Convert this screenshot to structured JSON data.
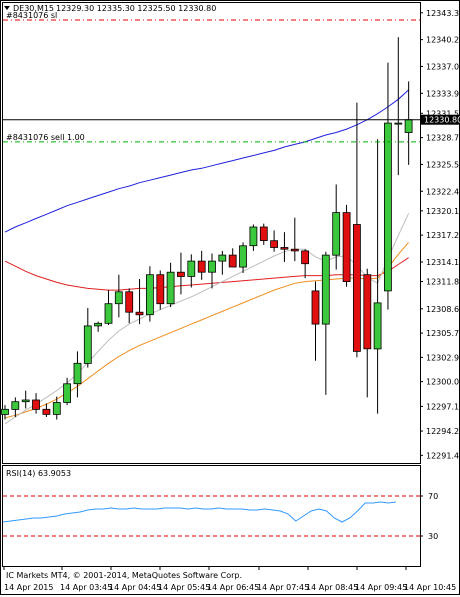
{
  "header": {
    "symbol_label": "DE30,M15",
    "ohlc_label": "12329.30 12335.30 12325.50 12330.80"
  },
  "orders": [
    {
      "label": "#8431076 sl",
      "price": 12342.5,
      "color": "#e00000"
    },
    {
      "label": "#8431076 sell 1.00",
      "price": 12328.2,
      "color": "#00b000"
    }
  ],
  "current_price": {
    "value": 12330.8,
    "label": "12330.80"
  },
  "rsi": {
    "label": "RSI(14) 63.9053",
    "levels": [
      70,
      30
    ],
    "range": [
      0,
      100
    ],
    "values": [
      44,
      45,
      46,
      47,
      48,
      48,
      49,
      50,
      52,
      53,
      54,
      56,
      57,
      57,
      58,
      57,
      57,
      58,
      57,
      57,
      57,
      58,
      58,
      58,
      57,
      58,
      57,
      57,
      58,
      57,
      57,
      57,
      56,
      56,
      57,
      56,
      55,
      52,
      45,
      50,
      55,
      57,
      55,
      48,
      44,
      48,
      55,
      63,
      63,
      64,
      63,
      64
    ]
  },
  "footer": {
    "copyright": "IC Markets MT4, © 2001-2014, MetaQuotes Software Corp."
  },
  "chart_data": {
    "type": "candlestick",
    "title": "DE30,M15",
    "y_ticks": [
      "12343.35",
      "12340.20",
      "12337.05",
      "12333.90",
      "12331.55",
      "12328.70",
      "12325.55",
      "12322.40",
      "12320.10",
      "12317.25",
      "12314.10",
      "12311.80",
      "12308.60",
      "12305.75",
      "12302.90",
      "12300.05",
      "12297.15",
      "12294.25",
      "12291.40"
    ],
    "x_ticks": [
      "14 Apr 2015",
      "14 Apr 03:45",
      "14 Apr 04:45",
      "14 Apr 05:45",
      "14 Apr 06:45",
      "14 Apr 07:45",
      "14 Apr 08:45",
      "14 Apr 09:45",
      "14 Apr 10:45"
    ],
    "ylim": [
      12290.5,
      12344.5
    ],
    "candles": [
      {
        "o": 12296.2,
        "h": 12297.3,
        "l": 12295.6,
        "c": 12296.8
      },
      {
        "o": 12296.8,
        "h": 12298.2,
        "l": 12295.9,
        "c": 12297.7
      },
      {
        "o": 12297.7,
        "h": 12299.0,
        "l": 12296.9,
        "c": 12297.9
      },
      {
        "o": 12297.9,
        "h": 12298.7,
        "l": 12296.3,
        "c": 12296.8
      },
      {
        "o": 12296.8,
        "h": 12297.5,
        "l": 12295.9,
        "c": 12296.2
      },
      {
        "o": 12296.2,
        "h": 12298.3,
        "l": 12295.6,
        "c": 12297.6
      },
      {
        "o": 12297.6,
        "h": 12300.5,
        "l": 12297.3,
        "c": 12299.8
      },
      {
        "o": 12299.8,
        "h": 12303.6,
        "l": 12298.2,
        "c": 12302.2
      },
      {
        "o": 12302.2,
        "h": 12308.7,
        "l": 12301.7,
        "c": 12306.6
      },
      {
        "o": 12306.6,
        "h": 12307.1,
        "l": 12305.9,
        "c": 12306.9
      },
      {
        "o": 12306.9,
        "h": 12310.8,
        "l": 12306.7,
        "c": 12309.2
      },
      {
        "o": 12309.2,
        "h": 12312.6,
        "l": 12307.6,
        "c": 12310.6
      },
      {
        "o": 12310.6,
        "h": 12311.0,
        "l": 12306.9,
        "c": 12308.2
      },
      {
        "o": 12308.2,
        "h": 12312.1,
        "l": 12306.8,
        "c": 12307.9
      },
      {
        "o": 12307.9,
        "h": 12313.6,
        "l": 12307.1,
        "c": 12312.6
      },
      {
        "o": 12312.6,
        "h": 12313.1,
        "l": 12308.5,
        "c": 12309.2
      },
      {
        "o": 12309.2,
        "h": 12314.0,
        "l": 12308.8,
        "c": 12312.9
      },
      {
        "o": 12312.9,
        "h": 12315.2,
        "l": 12310.3,
        "c": 12312.4
      },
      {
        "o": 12312.4,
        "h": 12315.0,
        "l": 12311.1,
        "c": 12314.2
      },
      {
        "o": 12314.2,
        "h": 12315.4,
        "l": 12312.0,
        "c": 12312.9
      },
      {
        "o": 12312.9,
        "h": 12315.1,
        "l": 12311.0,
        "c": 12314.2
      },
      {
        "o": 12314.2,
        "h": 12315.4,
        "l": 12312.6,
        "c": 12314.9
      },
      {
        "o": 12314.9,
        "h": 12315.7,
        "l": 12313.5,
        "c": 12313.5
      },
      {
        "o": 12313.5,
        "h": 12316.4,
        "l": 12312.8,
        "c": 12316.0
      },
      {
        "o": 12316.0,
        "h": 12318.5,
        "l": 12315.4,
        "c": 12318.2
      },
      {
        "o": 12318.2,
        "h": 12318.6,
        "l": 12316.1,
        "c": 12316.6
      },
      {
        "o": 12316.6,
        "h": 12317.8,
        "l": 12315.3,
        "c": 12315.8
      },
      {
        "o": 12315.8,
        "h": 12317.6,
        "l": 12314.1,
        "c": 12315.6
      },
      {
        "o": 12315.6,
        "h": 12319.3,
        "l": 12314.2,
        "c": 12315.4
      },
      {
        "o": 12315.4,
        "h": 12315.6,
        "l": 12312.2,
        "c": 12313.9
      },
      {
        "o": 12310.7,
        "h": 12311.8,
        "l": 12302.5,
        "c": 12306.8
      },
      {
        "o": 12306.8,
        "h": 12315.3,
        "l": 12298.5,
        "c": 12314.9
      },
      {
        "o": 12314.9,
        "h": 12323.2,
        "l": 12313.2,
        "c": 12319.9
      },
      {
        "o": 12319.9,
        "h": 12320.8,
        "l": 12311.2,
        "c": 12311.8
      },
      {
        "o": 12318.5,
        "h": 12332.8,
        "l": 12302.9,
        "c": 12303.6
      },
      {
        "o": 12312.6,
        "h": 12313.3,
        "l": 12298.2,
        "c": 12303.9
      },
      {
        "o": 12303.9,
        "h": 12328.5,
        "l": 12296.3,
        "c": 12309.3
      },
      {
        "o": 12310.7,
        "h": 12337.5,
        "l": 12308.5,
        "c": 12330.4
      },
      {
        "o": 12330.4,
        "h": 12340.5,
        "l": 12324.3,
        "c": 12330.4
      },
      {
        "o": 12329.3,
        "h": 12335.3,
        "l": 12325.5,
        "c": 12330.8
      }
    ],
    "ma_lines": [
      {
        "color": "#2020dd",
        "values": [
          12317.6,
          12318.2,
          12318.7,
          12319.2,
          12319.7,
          12320.2,
          12320.7,
          12321.1,
          12321.5,
          12321.9,
          12322.3,
          12322.7,
          12323.0,
          12323.4,
          12323.7,
          12324.0,
          12324.3,
          12324.6,
          12324.9,
          12325.1,
          12325.4,
          12325.7,
          12326.0,
          12326.3,
          12326.6,
          12326.9,
          12327.2,
          12327.6,
          12327.9,
          12328.2,
          12328.6,
          12329.0,
          12329.3,
          12329.7,
          12330.2,
          12330.8,
          12331.5,
          12332.3,
          12333.2,
          12334.3
        ]
      },
      {
        "color": "#e02020",
        "values": [
          12314.2,
          12313.6,
          12313.0,
          12312.5,
          12312.1,
          12311.7,
          12311.4,
          12311.2,
          12311.0,
          12310.9,
          12310.8,
          12310.8,
          12310.9,
          12311.0,
          12311.0,
          12311.1,
          12311.2,
          12311.3,
          12311.4,
          12311.5,
          12311.6,
          12311.7,
          12311.8,
          12311.9,
          12312.0,
          12312.1,
          12312.2,
          12312.3,
          12312.4,
          12312.5,
          12312.5,
          12312.5,
          12312.6,
          12312.6,
          12312.6,
          12312.5,
          12312.5,
          12313.0,
          12313.8,
          12314.6
        ]
      },
      {
        "color": "#f08c1e",
        "values": [
          12295.8,
          12296.1,
          12296.5,
          12296.9,
          12297.4,
          12298.0,
          12298.7,
          12299.5,
          12300.4,
          12301.3,
          12302.2,
          12303.0,
          12303.7,
          12304.3,
          12304.8,
          12305.3,
          12305.8,
          12306.3,
          12306.8,
          12307.3,
          12307.8,
          12308.3,
          12308.8,
          12309.3,
          12309.8,
          12310.3,
          12310.8,
          12311.2,
          12311.6,
          12311.8,
          12311.9,
          12312.0,
          12312.1,
          12312.2,
          12312.2,
          12312.1,
          12312.2,
          12313.4,
          12315.0,
          12316.4
        ]
      },
      {
        "color": "#bdbdbd",
        "values": [
          12295.1,
          12295.9,
          12296.7,
          12297.4,
          12298.2,
          12299.0,
          12299.9,
          12301.0,
          12302.3,
          12303.6,
          12304.9,
          12306.0,
          12306.8,
          12307.4,
          12308.0,
          12308.5,
          12309.0,
          12309.5,
          12310.0,
          12310.6,
          12311.2,
          12311.8,
          12312.4,
          12313.0,
          12313.6,
          12314.2,
          12314.8,
          12315.3,
          12315.6,
          12315.6,
          12314.7,
          12314.2,
          12314.7,
          12314.8,
          12313.7,
          12312.3,
          12311.6,
          12314.5,
          12317.2,
          12319.8
        ]
      }
    ]
  }
}
